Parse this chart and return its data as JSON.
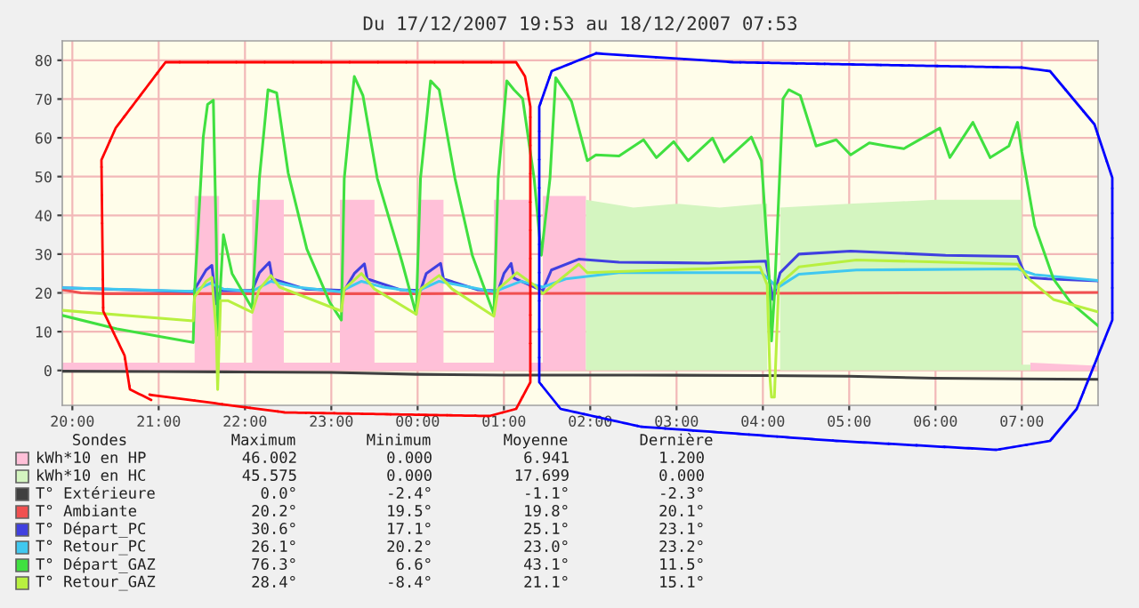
{
  "chart_data": {
    "type": "line",
    "title": "Du 17/12/2007 19:53 au 18/12/2007 07:53",
    "xlim": [
      "2007-12-17T19:53",
      "2007-12-18T07:53"
    ],
    "ylim": [
      -9,
      85
    ],
    "xticks": [
      {
        "value": "2007-12-17T20:00",
        "label": "20:00"
      },
      {
        "value": "2007-12-17T21:00",
        "label": "21:00"
      },
      {
        "value": "2007-12-17T22:00",
        "label": "22:00"
      },
      {
        "value": "2007-12-17T23:00",
        "label": "23:00"
      },
      {
        "value": "2007-12-18T00:00",
        "label": "00:00"
      },
      {
        "value": "2007-12-18T01:00",
        "label": "01:00"
      },
      {
        "value": "2007-12-18T02:00",
        "label": "02:00"
      },
      {
        "value": "2007-12-18T03:00",
        "label": "03:00"
      },
      {
        "value": "2007-12-18T04:00",
        "label": "04:00"
      },
      {
        "value": "2007-12-18T05:00",
        "label": "05:00"
      },
      {
        "value": "2007-12-18T06:00",
        "label": "06:00"
      },
      {
        "value": "2007-12-18T07:00",
        "label": "07:00"
      }
    ],
    "yticks": [
      0,
      10,
      20,
      30,
      40,
      50,
      60,
      70,
      80
    ],
    "grid": true,
    "legend": "bottom",
    "marker": "none",
    "line_style": "solid",
    "series": [
      {
        "name": "kWh*10 en HP",
        "type": "area",
        "color": "#ffc0d8",
        "x": [
          "2007-12-17T19:53",
          "2007-12-17T21:25",
          "2007-12-17T21:25",
          "2007-12-17T21:42",
          "2007-12-17T21:42",
          "2007-12-17T22:05",
          "2007-12-17T22:05",
          "2007-12-17T22:27",
          "2007-12-17T22:27",
          "2007-12-17T23:06",
          "2007-12-17T23:06",
          "2007-12-17T23:30",
          "2007-12-17T23:30",
          "2007-12-18T00:00",
          "2007-12-18T00:00",
          "2007-12-18T00:18",
          "2007-12-18T00:18",
          "2007-12-18T00:53",
          "2007-12-18T00:53",
          "2007-12-18T01:18",
          "2007-12-18T01:18",
          "2007-12-18T01:27",
          "2007-12-18T01:27",
          "2007-12-18T01:57",
          "2007-12-18T01:57",
          "2007-12-18T07:06",
          "2007-12-18T07:06",
          "2007-12-18T07:53"
        ],
        "values": [
          2,
          2,
          45,
          45,
          2,
          2,
          44,
          44,
          2,
          2,
          44,
          44,
          2,
          2,
          44,
          44,
          2,
          2,
          44,
          44,
          2,
          2,
          45,
          45,
          0,
          0,
          2,
          1.2
        ]
      },
      {
        "name": "kWh*10 en HC",
        "type": "area",
        "color": "#d4f5c0",
        "x": [
          "2007-12-17T19:53",
          "2007-12-18T01:57",
          "2007-12-18T01:57",
          "2007-12-18T02:30",
          "2007-12-18T03:00",
          "2007-12-18T03:30",
          "2007-12-18T04:00",
          "2007-12-18T04:03",
          "2007-12-18T04:03",
          "2007-12-18T04:12",
          "2007-12-18T04:12",
          "2007-12-18T05:00",
          "2007-12-18T06:00",
          "2007-12-18T07:00",
          "2007-12-18T07:00",
          "2007-12-18T07:06",
          "2007-12-18T07:06",
          "2007-12-18T07:53"
        ],
        "values": [
          0,
          0,
          44,
          42,
          43,
          42,
          43,
          43,
          0,
          0,
          42,
          43,
          44,
          44,
          1.5,
          1.5,
          0,
          0
        ]
      },
      {
        "name": "T° Extérieure",
        "color": "#404040",
        "x": [
          "2007-12-17T19:53",
          "2007-12-17T21:00",
          "2007-12-17T22:00",
          "2007-12-17T23:00",
          "2007-12-18T00:00",
          "2007-12-18T01:00",
          "2007-12-18T02:30",
          "2007-12-18T04:00",
          "2007-12-18T05:00",
          "2007-12-18T06:00",
          "2007-12-18T07:00",
          "2007-12-18T07:53"
        ],
        "values": [
          -0.2,
          -0.3,
          -0.4,
          -0.5,
          -1.0,
          -1.2,
          -1.2,
          -1.3,
          -1.5,
          -2.0,
          -2.2,
          -2.3
        ]
      },
      {
        "name": "T° Ambiante",
        "color": "#f05050",
        "x": [
          "2007-12-17T19:53",
          "2007-12-17T20:06",
          "2007-12-17T20:24",
          "2007-12-17T22:00",
          "2007-12-18T00:00",
          "2007-12-18T02:00",
          "2007-12-18T04:00",
          "2007-12-18T06:00",
          "2007-12-18T07:53"
        ],
        "values": [
          20.8,
          20.0,
          19.8,
          19.8,
          19.8,
          19.9,
          19.9,
          20.0,
          20.1
        ]
      },
      {
        "name": "T° Départ_PC",
        "color": "#4040e0",
        "x": [
          "2007-12-17T19:53",
          "2007-12-17T21:24",
          "2007-12-17T21:33",
          "2007-12-17T21:37",
          "2007-12-17T21:38",
          "2007-12-17T21:40",
          "2007-12-17T21:43",
          "2007-12-17T22:05",
          "2007-12-17T22:10",
          "2007-12-17T22:17",
          "2007-12-17T22:19",
          "2007-12-17T22:42",
          "2007-12-17T23:09",
          "2007-12-17T23:16",
          "2007-12-17T23:23",
          "2007-12-17T23:25",
          "2007-12-17T23:48",
          "2007-12-18T00:02",
          "2007-12-18T00:06",
          "2007-12-18T00:16",
          "2007-12-18T00:18",
          "2007-12-18T00:42",
          "2007-12-18T00:56",
          "2007-12-18T01:00",
          "2007-12-18T01:05",
          "2007-12-18T01:07",
          "2007-12-18T01:21",
          "2007-12-18T01:27",
          "2007-12-18T01:33",
          "2007-12-18T01:52",
          "2007-12-18T02:20",
          "2007-12-18T03:22",
          "2007-12-18T04:02",
          "2007-12-18T04:06",
          "2007-12-18T04:07",
          "2007-12-18T04:12",
          "2007-12-18T04:25",
          "2007-12-18T05:01",
          "2007-12-18T06:07",
          "2007-12-18T06:57",
          "2007-12-18T07:00",
          "2007-12-18T07:03",
          "2007-12-18T07:18",
          "2007-12-18T07:53"
        ],
        "values": [
          21.3,
          20.3,
          25.9,
          27.1,
          23.6,
          17.2,
          20.6,
          20.6,
          25.2,
          27.9,
          23.6,
          21.0,
          20.6,
          25.0,
          27.5,
          23.6,
          20.8,
          20.6,
          25.0,
          27.6,
          23.6,
          20.8,
          20.5,
          25.0,
          27.6,
          23.8,
          21.5,
          20.6,
          25.9,
          28.7,
          27.9,
          27.7,
          28.2,
          20.6,
          18.3,
          25.2,
          30.0,
          30.8,
          29.7,
          29.4,
          26.7,
          24.0,
          23.6,
          23.1
        ]
      },
      {
        "name": "T° Retour_PC",
        "color": "#40c8f0",
        "x": [
          "2007-12-17T19:53",
          "2007-12-17T21:24",
          "2007-12-17T21:36",
          "2007-12-17T21:45",
          "2007-12-17T22:05",
          "2007-12-17T22:18",
          "2007-12-17T22:36",
          "2007-12-17T23:06",
          "2007-12-17T23:21",
          "2007-12-17T23:36",
          "2007-12-17T23:59",
          "2007-12-18T00:15",
          "2007-12-18T00:36",
          "2007-12-18T00:53",
          "2007-12-18T01:12",
          "2007-12-18T01:27",
          "2007-12-18T01:43",
          "2007-12-18T02:20",
          "2007-12-18T03:59",
          "2007-12-18T04:06",
          "2007-12-18T04:10",
          "2007-12-18T04:25",
          "2007-12-18T05:05",
          "2007-12-18T06:57",
          "2007-12-18T07:09",
          "2007-12-18T07:53"
        ],
        "values": [
          21.3,
          20.4,
          22.5,
          21.0,
          20.4,
          23.0,
          21.5,
          20.3,
          23.0,
          21.5,
          20.3,
          23.0,
          21.5,
          20.3,
          23.0,
          21.5,
          23.6,
          25.2,
          25.2,
          22.9,
          21.3,
          24.8,
          25.9,
          26.2,
          24.7,
          23.2
        ]
      },
      {
        "name": "T° Départ_GAZ",
        "color": "#40e040",
        "x": [
          "2007-12-17T19:53",
          "2007-12-17T20:31",
          "2007-12-17T21:24",
          "2007-12-17T21:25",
          "2007-12-17T21:31",
          "2007-12-17T21:34",
          "2007-12-17T21:38",
          "2007-12-17T21:40",
          "2007-12-17T21:41",
          "2007-12-17T21:45",
          "2007-12-17T21:51",
          "2007-12-17T22:05",
          "2007-12-17T22:10",
          "2007-12-17T22:16",
          "2007-12-17T22:22",
          "2007-12-17T22:30",
          "2007-12-17T22:43",
          "2007-12-17T22:59",
          "2007-12-17T23:07",
          "2007-12-17T23:09",
          "2007-12-17T23:16",
          "2007-12-17T23:22",
          "2007-12-17T23:32",
          "2007-12-17T23:49",
          "2007-12-17T23:59",
          "2007-12-18T00:02",
          "2007-12-18T00:09",
          "2007-12-18T00:15",
          "2007-12-18T00:26",
          "2007-12-18T00:38",
          "2007-12-18T00:53",
          "2007-12-18T00:56",
          "2007-12-18T01:02",
          "2007-12-18T01:07",
          "2007-12-18T01:13",
          "2007-12-18T01:21",
          "2007-12-18T01:26",
          "2007-12-18T01:32",
          "2007-12-18T01:36",
          "2007-12-18T01:47",
          "2007-12-18T01:58",
          "2007-12-18T02:04",
          "2007-12-18T02:20",
          "2007-12-18T02:37",
          "2007-12-18T02:46",
          "2007-12-18T02:58",
          "2007-12-18T03:08",
          "2007-12-18T03:25",
          "2007-12-18T03:33",
          "2007-12-18T03:52",
          "2007-12-18T03:59",
          "2007-12-18T04:05",
          "2007-12-18T04:06",
          "2007-12-18T04:08",
          "2007-12-18T04:14",
          "2007-12-18T04:18",
          "2007-12-18T04:26",
          "2007-12-18T04:37",
          "2007-12-18T04:51",
          "2007-12-18T05:01",
          "2007-12-18T05:14",
          "2007-12-18T05:26",
          "2007-12-18T05:38",
          "2007-12-18T06:03",
          "2007-12-18T06:10",
          "2007-12-18T06:26",
          "2007-12-18T06:38",
          "2007-12-18T06:51",
          "2007-12-18T06:57",
          "2007-12-18T07:00",
          "2007-12-18T07:09",
          "2007-12-18T07:22",
          "2007-12-18T07:34",
          "2007-12-18T07:53"
        ],
        "values": [
          14.2,
          10.7,
          7.2,
          20.6,
          60.2,
          68.6,
          69.7,
          34.3,
          9.1,
          35.0,
          25.0,
          16.0,
          49.5,
          72.4,
          71.6,
          51.0,
          31.3,
          17.5,
          13.0,
          49.5,
          75.8,
          70.9,
          49.5,
          28.2,
          14.5,
          49.5,
          74.7,
          72.4,
          49.5,
          29.7,
          14.5,
          49.5,
          74.7,
          72.4,
          70.1,
          49.5,
          29.7,
          49.5,
          75.5,
          69.4,
          54.1,
          55.6,
          55.3,
          59.5,
          54.9,
          59.0,
          54.1,
          59.9,
          53.8,
          60.2,
          54.1,
          20.6,
          7.6,
          19.1,
          70.1,
          72.4,
          70.9,
          57.9,
          59.5,
          55.6,
          58.7,
          57.9,
          57.2,
          62.5,
          54.9,
          64.0,
          54.9,
          57.9,
          64.0,
          56.4,
          37.3,
          23.6,
          17.5,
          11.5
        ]
      },
      {
        "name": "T° Retour_GAZ",
        "color": "#b8f040",
        "x": [
          "2007-12-17T19:53",
          "2007-12-17T21:24",
          "2007-12-17T21:25",
          "2007-12-17T21:33",
          "2007-12-17T21:37",
          "2007-12-17T21:40",
          "2007-12-17T21:41",
          "2007-12-17T21:43",
          "2007-12-17T21:48",
          "2007-12-17T22:05",
          "2007-12-17T22:10",
          "2007-12-17T22:18",
          "2007-12-17T22:24",
          "2007-12-17T23:07",
          "2007-12-17T23:09",
          "2007-12-17T23:21",
          "2007-12-17T23:30",
          "2007-12-17T23:59",
          "2007-12-18T00:02",
          "2007-12-18T00:15",
          "2007-12-18T00:24",
          "2007-12-18T00:53",
          "2007-12-18T00:56",
          "2007-12-18T01:09",
          "2007-12-18T01:21",
          "2007-12-18T01:27",
          "2007-12-18T01:52",
          "2007-12-18T01:58",
          "2007-12-18T02:20",
          "2007-12-18T03:58",
          "2007-12-18T04:03",
          "2007-12-18T04:05",
          "2007-12-18T04:06",
          "2007-12-18T04:08",
          "2007-12-18T04:11",
          "2007-12-18T04:25",
          "2007-12-18T05:05",
          "2007-12-18T06:07",
          "2007-12-18T06:57",
          "2007-12-18T07:05",
          "2007-12-18T07:22",
          "2007-12-18T07:53"
        ],
        "values": [
          15.5,
          12.8,
          19.0,
          23.0,
          24.0,
          10.0,
          -4.9,
          18.0,
          18.0,
          15.0,
          21.0,
          24.5,
          21.5,
          15.3,
          21.0,
          25.0,
          21.0,
          14.5,
          21.0,
          24.5,
          21.0,
          14.0,
          21.0,
          25.2,
          22.0,
          19.8,
          27.4,
          25.2,
          25.5,
          26.7,
          22.1,
          -2.3,
          -6.9,
          -6.9,
          22.1,
          26.7,
          28.5,
          27.9,
          27.4,
          23.6,
          18.3,
          15.1
        ]
      }
    ],
    "annotations": [
      "Sondes",
      "Maximum",
      "Minimum",
      "Moyenne",
      "Dernière",
      "46.002",
      "0.000",
      "6.941",
      "1.200",
      "45.575",
      "0.000",
      "17.699",
      "0.000",
      "0.0°",
      "-2.4°",
      "-1.1°",
      "-2.3°",
      "20.2°",
      "19.5°",
      "19.8°",
      "20.1°",
      "30.6°",
      "17.1°",
      "25.1°",
      "23.1°",
      "26.1°",
      "20.2°",
      "23.0°",
      "23.2°",
      "76.3°",
      "6.6°",
      "43.1°",
      "11.5°",
      "28.4°",
      "-8.4°",
      "21.1°",
      "15.1°"
    ]
  }
}
